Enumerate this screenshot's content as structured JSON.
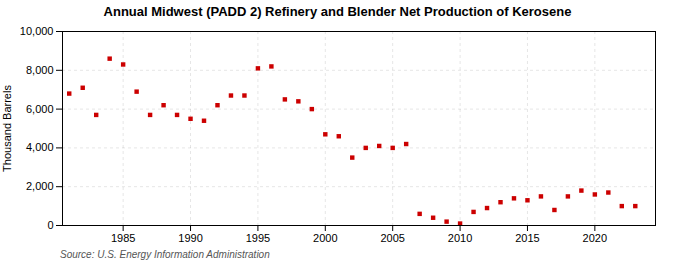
{
  "chart_data": {
    "type": "scatter",
    "title": "Annual Midwest (PADD 2) Refinery and Blender Net Production of Kerosene",
    "ylabel": "Thousand Barrels",
    "source": "Source: U.S. Energy Information Administration",
    "x": [
      1981,
      1982,
      1983,
      1984,
      1985,
      1986,
      1987,
      1988,
      1989,
      1990,
      1991,
      1992,
      1993,
      1994,
      1995,
      1996,
      1997,
      1998,
      1999,
      2000,
      2001,
      2002,
      2003,
      2004,
      2005,
      2006,
      2007,
      2008,
      2009,
      2010,
      2011,
      2012,
      2013,
      2014,
      2015,
      2016,
      2017,
      2018,
      2019,
      2020,
      2021,
      2022,
      2023
    ],
    "values": [
      6800,
      7100,
      5700,
      8600,
      8300,
      6900,
      5700,
      6200,
      5700,
      5500,
      5400,
      6200,
      6700,
      6700,
      8100,
      8200,
      6500,
      6400,
      6000,
      4700,
      4600,
      3500,
      4000,
      4100,
      4000,
      4200,
      600,
      400,
      200,
      100,
      700,
      900,
      1200,
      1400,
      1300,
      1500,
      800,
      1500,
      1800,
      1600,
      1700,
      1000,
      1000
    ],
    "color": "#cc0000",
    "marker": "square",
    "xlim": [
      1980.5,
      2024.5
    ],
    "xticks": [
      1985,
      1990,
      1995,
      2000,
      2005,
      2010,
      2015,
      2020
    ],
    "ylim": [
      0,
      10000
    ],
    "yticks": [
      0,
      {
        "value": 2000,
        "label": "2,000"
      },
      {
        "value": 4000,
        "label": "4,000"
      },
      {
        "value": 6000,
        "label": "6,000"
      },
      {
        "value": 8000,
        "label": "8,000"
      },
      {
        "value": 10000,
        "label": "10,000"
      }
    ],
    "grid": true
  }
}
